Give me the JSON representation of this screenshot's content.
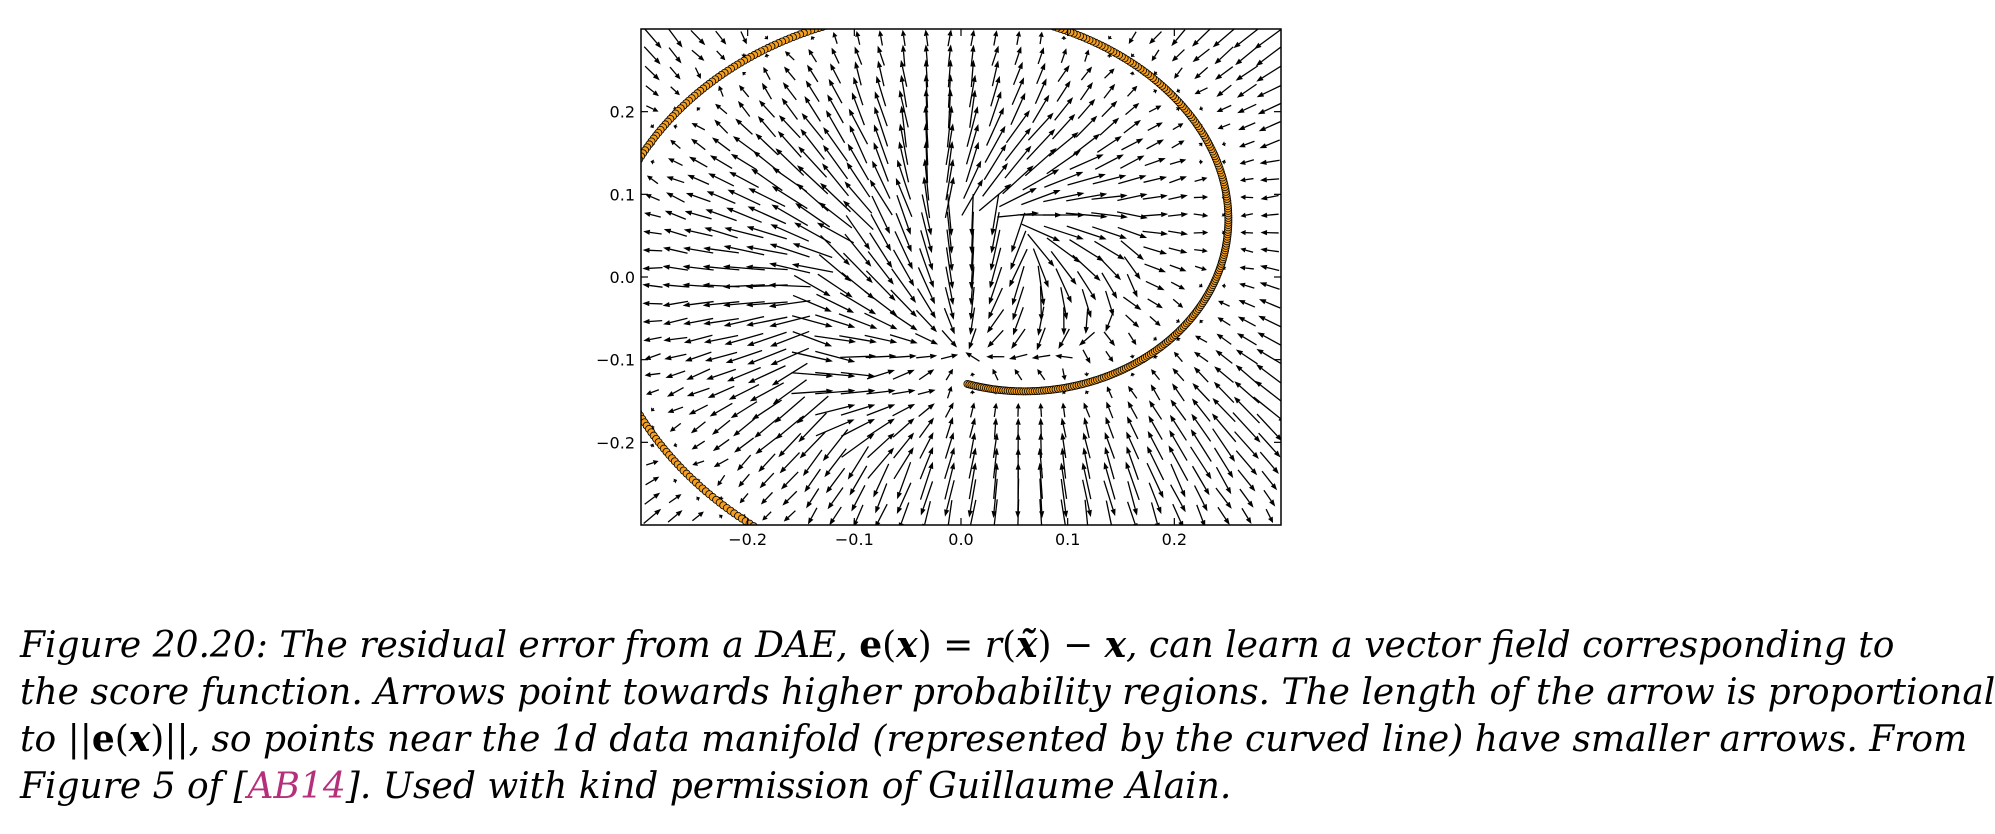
{
  "chart_data": {
    "type": "vector-field-scatter",
    "title": "",
    "xlabel": "",
    "ylabel": "",
    "xlim": [
      -0.3,
      0.3
    ],
    "ylim": [
      -0.3,
      0.3
    ],
    "x_ticks": [
      {
        "value": -0.2,
        "label": "−0.2"
      },
      {
        "value": -0.1,
        "label": "−0.1"
      },
      {
        "value": 0.0,
        "label": "0.0"
      },
      {
        "value": 0.1,
        "label": "0.1"
      },
      {
        "value": 0.2,
        "label": "0.2"
      }
    ],
    "y_ticks": [
      {
        "value": 0.2,
        "label": "0.2"
      },
      {
        "value": 0.1,
        "label": "0.1"
      },
      {
        "value": 0.0,
        "label": "0.0"
      },
      {
        "value": -0.1,
        "label": "−0.1"
      },
      {
        "value": -0.2,
        "label": "−0.2"
      }
    ],
    "grid": false,
    "manifold_points": {
      "description": "spiral data manifold",
      "color": "#f5a020",
      "edge_color": "#000000",
      "spiral_center": [
        0.02,
        0.03
      ],
      "radius_start": 0.16,
      "radius_growth_per_radian": 0.0405,
      "angle_start_deg": -95,
      "angle_end_deg": 165
    },
    "arrow_field": {
      "color": "#000000",
      "grid_steps": 28,
      "sink_center": [
        0.0,
        0.03
      ]
    }
  },
  "caption": {
    "lines": [
      [
        {
          "t": "Figure 20.20: The residual error from a DAE, "
        },
        {
          "t": "e",
          "math": true,
          "bold": true
        },
        {
          "t": "(",
          "math": true
        },
        {
          "t": "x",
          "bold": true
        },
        {
          "t": ") = ",
          "math": true
        },
        {
          "t": "r"
        },
        {
          "t": "(",
          "math": true
        },
        {
          "t": "x̃",
          "bold": true
        },
        {
          "t": ") − ",
          "math": true
        },
        {
          "t": "x",
          "bold": true
        },
        {
          "t": ", can learn a vector field corresponding to"
        }
      ],
      [
        {
          "t": "the score function. Arrows point towards higher probability regions. The length of the arrow is proportional"
        }
      ],
      [
        {
          "t": "to ||"
        },
        {
          "t": "e",
          "math": true,
          "bold": true
        },
        {
          "t": "(",
          "math": true
        },
        {
          "t": "x",
          "bold": true
        },
        {
          "t": ")",
          "math": true
        },
        {
          "t": "||, so points near the 1d data manifold (represented by the curved line) have smaller arrows. From"
        }
      ],
      [
        {
          "t": "Figure 5 of ["
        },
        {
          "t": "AB14",
          "cite": true
        },
        {
          "t": "]. Used with kind permission of Guillaume Alain."
        }
      ]
    ]
  }
}
